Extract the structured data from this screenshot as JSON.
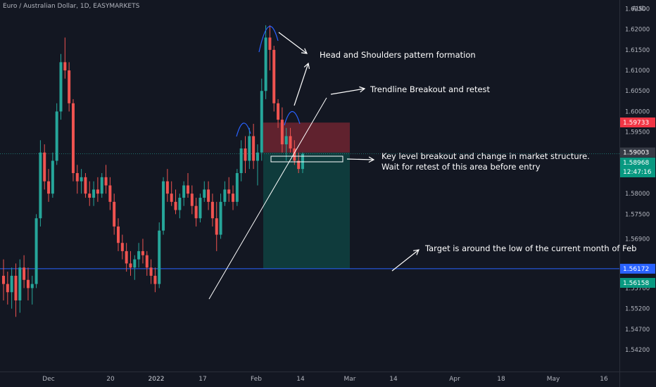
{
  "header": {
    "title": "Euro / Australian Dollar, 1D, EASYMARKETS"
  },
  "colors": {
    "background": "#131722",
    "up": "#26a69a",
    "down": "#ef5350",
    "price_line": "#2962ff",
    "text": "#b2b5be",
    "annotation": "#ffffff"
  },
  "chart_data": {
    "type": "candlestick",
    "symbol": "Euro / Australian Dollar",
    "timeframe": "1D",
    "broker": "EASYMARKETS",
    "currency": "AUD",
    "ylim": [
      1.538,
      1.634
    ],
    "y_ticks": [
      "1.62500",
      "1.62000",
      "1.61500",
      "1.61000",
      "1.60500",
      "1.60000",
      "1.59500",
      "1.58500",
      "1.58000",
      "1.57500",
      "1.56900",
      "1.55700",
      "1.55200",
      "1.54700",
      "1.54200"
    ],
    "x_ticks": [
      "Dec",
      "20",
      "2022",
      "17",
      "Feb",
      "14",
      "Mar",
      "14",
      "Apr",
      "18",
      "May",
      "16"
    ],
    "candles_ohlc": [
      [
        1.56,
        1.564,
        1.554,
        1.558
      ],
      [
        1.558,
        1.561,
        1.553,
        1.556
      ],
      [
        1.556,
        1.562,
        1.552,
        1.56
      ],
      [
        1.56,
        1.563,
        1.55,
        1.554
      ],
      [
        1.554,
        1.564,
        1.551,
        1.562
      ],
      [
        1.562,
        1.565,
        1.557,
        1.559
      ],
      [
        1.559,
        1.562,
        1.554,
        1.557
      ],
      [
        1.557,
        1.56,
        1.553,
        1.558
      ],
      [
        1.558,
        1.575,
        1.557,
        1.574
      ],
      [
        1.574,
        1.593,
        1.572,
        1.59
      ],
      [
        1.59,
        1.592,
        1.581,
        1.583
      ],
      [
        1.583,
        1.586,
        1.578,
        1.58
      ],
      [
        1.58,
        1.59,
        1.579,
        1.588
      ],
      [
        1.588,
        1.602,
        1.587,
        1.6
      ],
      [
        1.6,
        1.614,
        1.598,
        1.612
      ],
      [
        1.612,
        1.618,
        1.608,
        1.61
      ],
      [
        1.61,
        1.612,
        1.6,
        1.602
      ],
      [
        1.602,
        1.603,
        1.583,
        1.585
      ],
      [
        1.585,
        1.587,
        1.58,
        1.583
      ],
      [
        1.583,
        1.586,
        1.58,
        1.584
      ],
      [
        1.584,
        1.585,
        1.579,
        1.58
      ],
      [
        1.58,
        1.583,
        1.577,
        1.579
      ],
      [
        1.579,
        1.583,
        1.577,
        1.581
      ],
      [
        1.581,
        1.584,
        1.578,
        1.58
      ],
      [
        1.58,
        1.585,
        1.579,
        1.584
      ],
      [
        1.584,
        1.587,
        1.58,
        1.582
      ],
      [
        1.582,
        1.584,
        1.576,
        1.578
      ],
      [
        1.578,
        1.58,
        1.57,
        1.572
      ],
      [
        1.572,
        1.574,
        1.566,
        1.568
      ],
      [
        1.568,
        1.57,
        1.564,
        1.566
      ],
      [
        1.566,
        1.568,
        1.561,
        1.563
      ],
      [
        1.563,
        1.566,
        1.56,
        1.562
      ],
      [
        1.562,
        1.565,
        1.559,
        1.564
      ],
      [
        1.564,
        1.568,
        1.562,
        1.566
      ],
      [
        1.566,
        1.569,
        1.563,
        1.565
      ],
      [
        1.565,
        1.566,
        1.56,
        1.562
      ],
      [
        1.562,
        1.564,
        1.558,
        1.56
      ],
      [
        1.56,
        1.562,
        1.556,
        1.558
      ],
      [
        1.558,
        1.573,
        1.557,
        1.571
      ],
      [
        1.571,
        1.584,
        1.57,
        1.583
      ],
      [
        1.583,
        1.586,
        1.578,
        1.58
      ],
      [
        1.58,
        1.583,
        1.577,
        1.578
      ],
      [
        1.578,
        1.581,
        1.575,
        1.576
      ],
      [
        1.576,
        1.58,
        1.574,
        1.579
      ],
      [
        1.579,
        1.583,
        1.577,
        1.582
      ],
      [
        1.582,
        1.585,
        1.579,
        1.58
      ],
      [
        1.58,
        1.582,
        1.575,
        1.577
      ],
      [
        1.577,
        1.579,
        1.572,
        1.574
      ],
      [
        1.574,
        1.58,
        1.573,
        1.579
      ],
      [
        1.579,
        1.583,
        1.578,
        1.581
      ],
      [
        1.581,
        1.583,
        1.576,
        1.578
      ],
      [
        1.578,
        1.58,
        1.572,
        1.574
      ],
      [
        1.574,
        1.578,
        1.566,
        1.57
      ],
      [
        1.57,
        1.58,
        1.569,
        1.578
      ],
      [
        1.578,
        1.583,
        1.577,
        1.581
      ],
      [
        1.581,
        1.584,
        1.578,
        1.58
      ],
      [
        1.58,
        1.582,
        1.576,
        1.578
      ],
      [
        1.578,
        1.586,
        1.577,
        1.585
      ],
      [
        1.585,
        1.593,
        1.583,
        1.591
      ],
      [
        1.591,
        1.594,
        1.585,
        1.588
      ],
      [
        1.588,
        1.596,
        1.586,
        1.594
      ],
      [
        1.594,
        1.597,
        1.586,
        1.588
      ],
      [
        1.588,
        1.592,
        1.582,
        1.59
      ],
      [
        1.59,
        1.608,
        1.588,
        1.605
      ],
      [
        1.605,
        1.621,
        1.603,
        1.618
      ],
      [
        1.618,
        1.621,
        1.61,
        1.615
      ],
      [
        1.615,
        1.616,
        1.6,
        1.602
      ],
      [
        1.602,
        1.603,
        1.596,
        1.598
      ],
      [
        1.598,
        1.601,
        1.59,
        1.592
      ],
      [
        1.592,
        1.596,
        1.588,
        1.594
      ],
      [
        1.594,
        1.596,
        1.59,
        1.591
      ],
      [
        1.591,
        1.593,
        1.587,
        1.588
      ],
      [
        1.588,
        1.59,
        1.585,
        1.586
      ],
      [
        1.586,
        1.59,
        1.585,
        1.5897
      ]
    ],
    "price_labels": [
      {
        "text": "1.59733",
        "color": "#f23645"
      },
      {
        "text": "1.59003",
        "color": "#363a45"
      },
      {
        "text": "1.58968",
        "color": "#089981",
        "sub": "12:47:16"
      },
      {
        "text": "1.56172",
        "color": "#2962ff"
      },
      {
        "text": "1.56158",
        "color": "#089981"
      }
    ],
    "horizontal_line": 1.56172,
    "position": {
      "entry": 1.59,
      "stop": 1.5973,
      "target": 1.5617
    },
    "annotations": [
      "Head and Shoulders pattern formation",
      "Trendline Breakout and retest",
      "Key level breakout and change in market structure.",
      " Wait for retest of this area before entry",
      "Target is around the low of the current month of Feb"
    ]
  }
}
